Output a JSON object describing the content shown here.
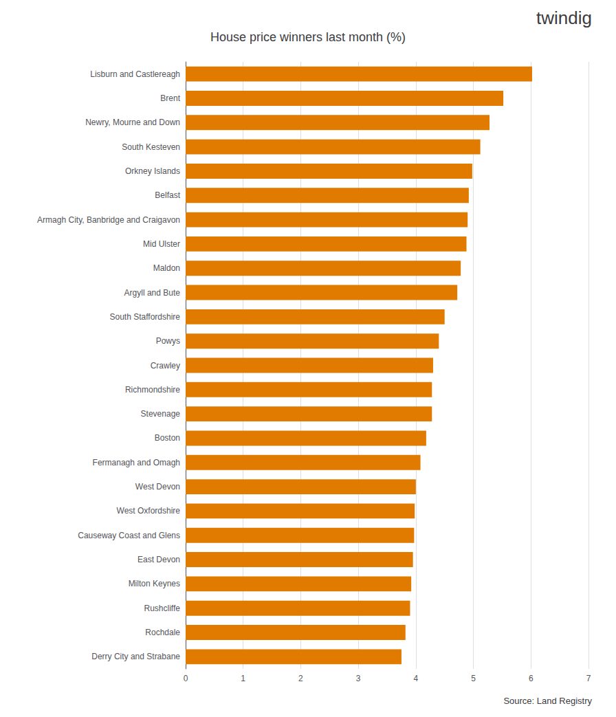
{
  "chart_data": {
    "type": "bar",
    "title": "House price winners last month (%)",
    "orientation": "horizontal",
    "categories": [
      "Derry City and Strabane",
      "Rochdale",
      "Rushcliffe",
      "Milton Keynes",
      "East Devon",
      "Causeway Coast and Glens",
      "West Oxfordshire",
      "West Devon",
      "Fermanagh and Omagh",
      "Boston",
      "Stevenage",
      "Richmondshire",
      "Crawley",
      "Powys",
      "South Staffordshire",
      "Argyll and Bute",
      "Maldon",
      "Mid Ulster",
      "Armagh City, Banbridge and Craigavon",
      "Belfast",
      "Orkney Islands",
      "South Kesteven",
      "Newry, Mourne and Down",
      "Brent",
      "Lisburn and Castlereagh"
    ],
    "values": [
      3.75,
      3.82,
      3.9,
      3.92,
      3.95,
      3.97,
      3.98,
      4.0,
      4.08,
      4.18,
      4.28,
      4.28,
      4.3,
      4.4,
      4.5,
      4.72,
      4.78,
      4.88,
      4.9,
      4.92,
      4.98,
      5.12,
      5.28,
      5.52,
      6.02
    ],
    "color": "#E07B00",
    "xlim": [
      0,
      7
    ],
    "xticks": [
      0,
      1,
      2,
      3,
      4,
      5,
      6,
      7
    ],
    "grid": true,
    "annotations": [
      "Source: Land Registry",
      "twindig"
    ]
  }
}
